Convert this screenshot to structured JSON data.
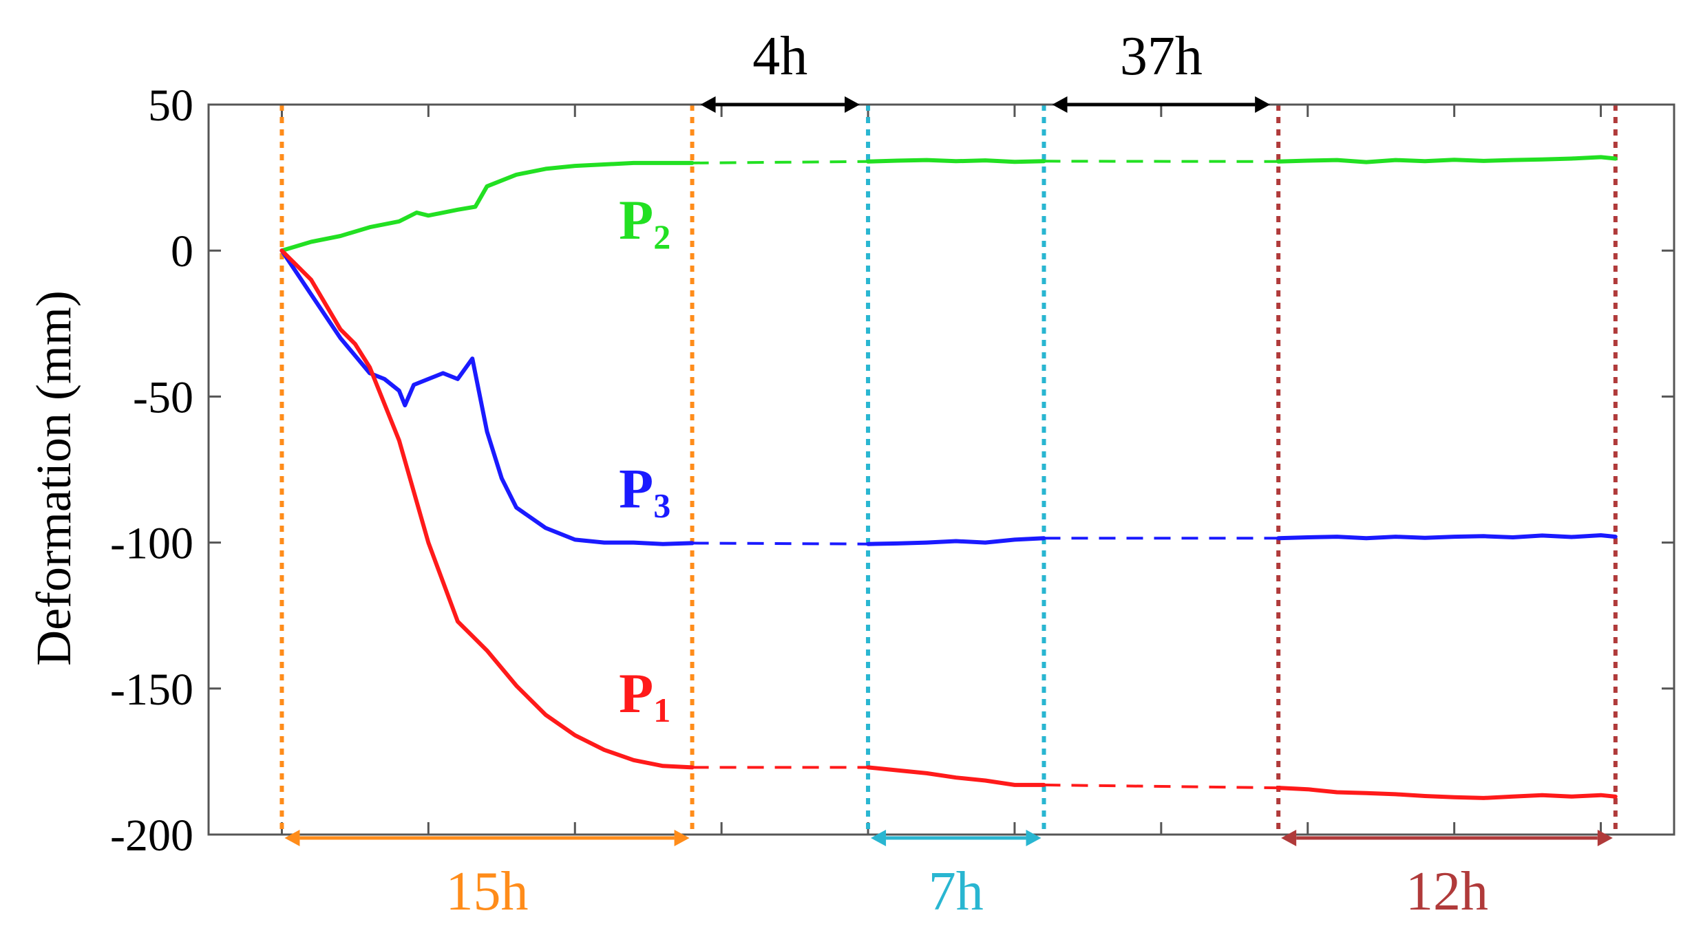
{
  "chart_data": {
    "type": "line",
    "ylabel": "Deformation (mm)",
    "xlabel": "",
    "ylim": [
      -200,
      50
    ],
    "yticks": [
      "50",
      "0",
      "-50",
      "-100",
      "-150",
      "-200"
    ],
    "x_unit": "h",
    "xlim_hours": [
      -2.5,
      47.5
    ],
    "phases": [
      {
        "label": "15h",
        "start": 0,
        "end": 14,
        "color": "#ff8c1a"
      },
      {
        "label": "7h",
        "start": 20,
        "end": 26,
        "color": "#29b6d1"
      },
      {
        "label": "12h",
        "start": 34,
        "end": 45.5,
        "color": "#b03a3a"
      }
    ],
    "gaps": [
      {
        "label": "4h",
        "start": 14,
        "end": 20
      },
      {
        "label": "37h",
        "start": 26,
        "end": 34
      }
    ],
    "series": [
      {
        "name": "P2",
        "label_main": "P",
        "label_sub": "2",
        "color": "#22e022",
        "segments": [
          {
            "x": [
              0,
              1,
              2,
              3,
              4,
              4.6,
              5,
              6,
              6.6,
              7,
              8,
              9,
              10,
              11,
              12,
              13,
              14
            ],
            "y": [
              0,
              3,
              5,
              8,
              10,
              13,
              12,
              14,
              15,
              22,
              26,
              28,
              29,
              29.5,
              30,
              30,
              30
            ]
          },
          {
            "x": [
              20,
              21,
              22,
              23,
              24,
              25,
              26
            ],
            "y": [
              30.5,
              30.8,
              31,
              30.6,
              30.9,
              30.4,
              30.6
            ]
          },
          {
            "x": [
              34,
              35,
              36,
              37,
              38,
              39,
              40,
              41,
              42,
              43,
              44,
              45,
              45.5
            ],
            "y": [
              30.5,
              30.8,
              31,
              30.3,
              31,
              30.6,
              31.1,
              30.7,
              31,
              31.2,
              31.5,
              32,
              31.5
            ]
          }
        ],
        "gap_segments": [
          {
            "x": [
              14,
              20
            ],
            "y": [
              30,
              30.5
            ]
          },
          {
            "x": [
              26,
              34
            ],
            "y": [
              30.6,
              30.5
            ]
          }
        ]
      },
      {
        "name": "P3",
        "label_main": "P",
        "label_sub": "3",
        "color": "#1a1aff",
        "segments": [
          {
            "x": [
              0,
              1,
              2,
              3,
              3.5,
              4,
              4.2,
              4.5,
              5,
              5.5,
              6,
              6.5,
              7,
              7.5,
              8,
              9,
              10,
              11,
              12,
              13,
              14
            ],
            "y": [
              0,
              -15,
              -30,
              -42,
              -44,
              -48,
              -53,
              -46,
              -44,
              -42,
              -44,
              -37,
              -62,
              -78,
              -88,
              -95,
              -99,
              -100,
              -100,
              -100.5,
              -100.2
            ]
          },
          {
            "x": [
              20,
              21,
              22,
              23,
              24,
              25,
              26
            ],
            "y": [
              -100.5,
              -100.3,
              -100,
              -99.5,
              -100,
              -99,
              -98.5
            ]
          },
          {
            "x": [
              34,
              35,
              36,
              37,
              38,
              39,
              40,
              41,
              42,
              43,
              44,
              45,
              45.5
            ],
            "y": [
              -98.5,
              -98.2,
              -98,
              -98.5,
              -98,
              -98.4,
              -98,
              -97.8,
              -98.2,
              -97.6,
              -98.1,
              -97.5,
              -98
            ]
          }
        ],
        "gap_segments": [
          {
            "x": [
              14,
              20
            ],
            "y": [
              -100.2,
              -100.5
            ]
          },
          {
            "x": [
              26,
              34
            ],
            "y": [
              -98.5,
              -98.5
            ]
          }
        ]
      },
      {
        "name": "P1",
        "label_main": "P",
        "label_sub": "1",
        "color": "#ff1a1a",
        "segments": [
          {
            "x": [
              0,
              1,
              2,
              2.5,
              3,
              4,
              5,
              6,
              6.5,
              7,
              8,
              9,
              10,
              11,
              12,
              13,
              14
            ],
            "y": [
              0,
              -10,
              -27,
              -32,
              -40,
              -65,
              -100,
              -127,
              -132,
              -137,
              -149,
              -159,
              -166,
              -171,
              -174.5,
              -176.5,
              -177
            ]
          },
          {
            "x": [
              20,
              21,
              22,
              23,
              24,
              25,
              26
            ],
            "y": [
              -177,
              -178,
              -179,
              -180.5,
              -181.5,
              -183,
              -183
            ]
          },
          {
            "x": [
              34,
              35,
              36,
              37,
              38,
              39,
              40,
              41,
              42,
              43,
              44,
              45,
              45.5
            ],
            "y": [
              -184,
              -184.5,
              -185.5,
              -185.8,
              -186.2,
              -186.8,
              -187.2,
              -187.5,
              -187,
              -186.5,
              -187,
              -186.5,
              -187
            ]
          }
        ],
        "gap_segments": [
          {
            "x": [
              14,
              20
            ],
            "y": [
              -177,
              -177
            ]
          },
          {
            "x": [
              26,
              34
            ],
            "y": [
              -183,
              -184
            ]
          }
        ]
      }
    ]
  }
}
